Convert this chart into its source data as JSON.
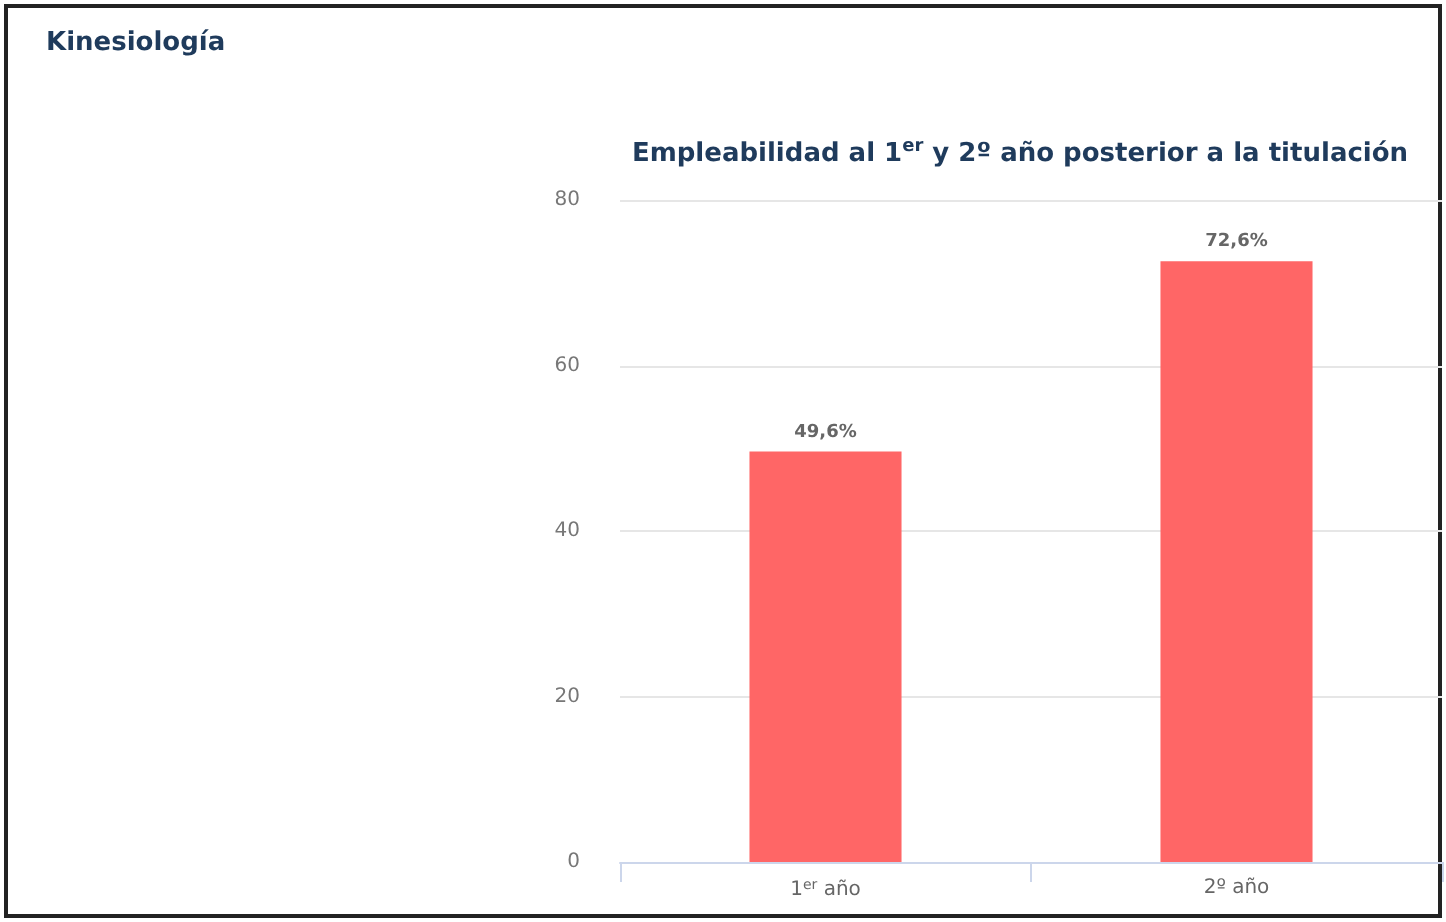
{
  "chart_data": {
    "type": "bar",
    "title": "Kinesiología",
    "subtitle": "Empleabilidad al 1$^{er}$ y 2º año posterior a la titulación",
    "categories": [
      "1$^{er}$ año",
      "2º año"
    ],
    "series": [
      {
        "color": "#ff6666",
        "values": [
          49.6,
          72.6
        ],
        "value_labels": [
          "49,6%",
          "72,6%"
        ]
      }
    ],
    "ylim": [
      0,
      80
    ],
    "yticks": [
      0,
      20,
      40,
      60,
      80
    ],
    "grid": "y",
    "legend": false
  }
}
